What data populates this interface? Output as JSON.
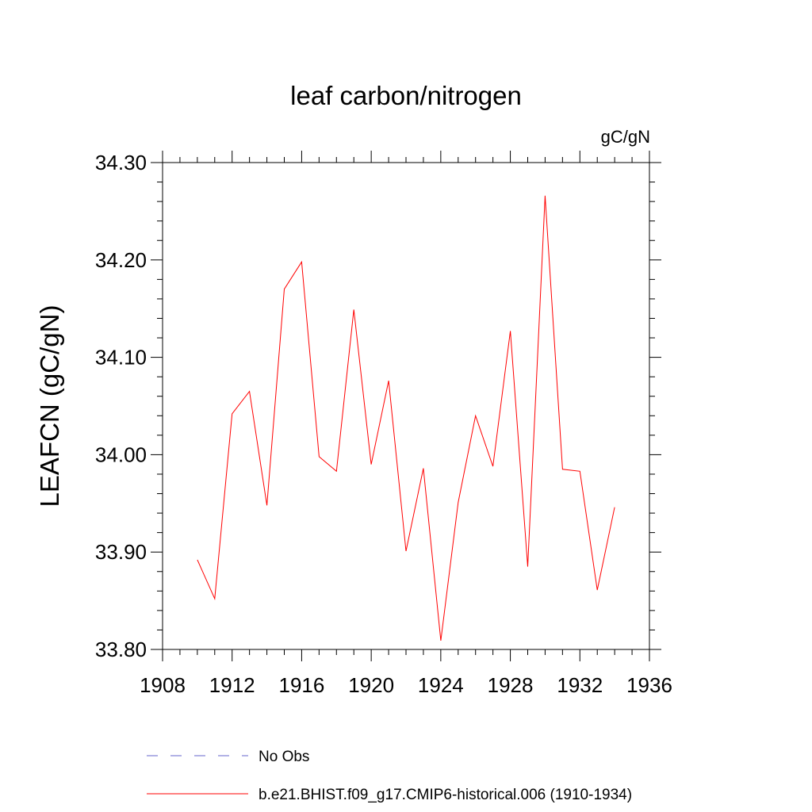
{
  "chart_data": {
    "type": "line",
    "title": "leaf carbon/nitrogen",
    "units_label": "gC/gN",
    "ylabel": "LEAFCN  (gC/gN)",
    "xlabel": "",
    "xlim": [
      1908,
      1936
    ],
    "ylim": [
      33.8,
      34.3
    ],
    "x_ticks": [
      1908,
      1912,
      1916,
      1920,
      1924,
      1928,
      1932,
      1936
    ],
    "x_tick_labels": [
      "1908",
      "1912",
      "1916",
      "1920",
      "1924",
      "1928",
      "1932",
      "1936"
    ],
    "y_ticks": [
      33.8,
      33.9,
      34.0,
      34.1,
      34.2,
      34.3
    ],
    "y_tick_labels": [
      "33.80",
      "33.90",
      "34.00",
      "34.10",
      "34.20",
      "34.30"
    ],
    "grid": false,
    "legend_position": "bottom",
    "series": [
      {
        "name": "b.e21.BHIST.f09_g17.CMIP6-historical.006 (1910-1934)",
        "color": "#ff0000",
        "style": "solid",
        "x": [
          1910,
          1911,
          1912,
          1913,
          1914,
          1915,
          1916,
          1917,
          1918,
          1919,
          1920,
          1921,
          1922,
          1923,
          1924,
          1925,
          1926,
          1927,
          1928,
          1929,
          1930,
          1931,
          1932,
          1933,
          1934
        ],
        "y": [
          33.892,
          33.852,
          34.042,
          34.065,
          33.948,
          34.17,
          34.198,
          33.998,
          33.983,
          34.149,
          33.99,
          34.076,
          33.901,
          33.986,
          33.809,
          33.951,
          34.04,
          33.988,
          34.127,
          33.885,
          34.266,
          33.985,
          33.983,
          33.861,
          33.946
        ]
      }
    ],
    "legend": [
      {
        "label": "No Obs",
        "color": "#6666cc",
        "style": "dashed"
      },
      {
        "label": "b.e21.BHIST.f09_g17.CMIP6-historical.006 (1910-1934)",
        "color": "#ff0000",
        "style": "solid"
      }
    ]
  }
}
